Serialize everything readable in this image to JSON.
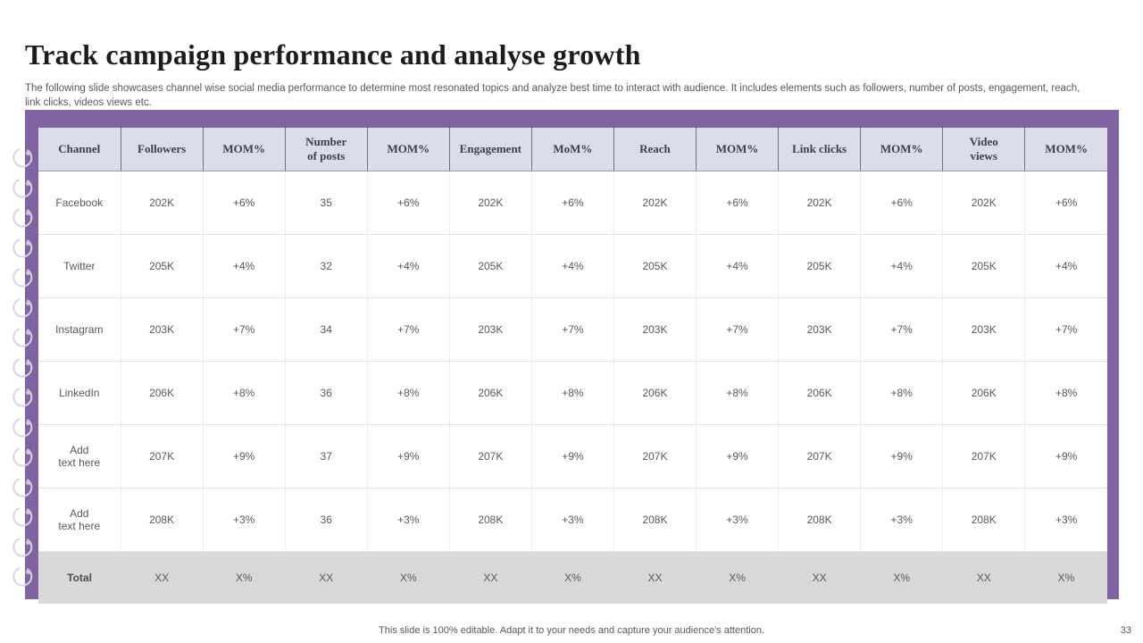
{
  "slide": {
    "title": "Track campaign performance and analyse growth",
    "description": "The following slide showcases channel wise social media performance to determine most resonated topics and analyze best time to interact with audience. It includes elements such as followers, number of posts, engagement, reach, link clicks, videos views etc.",
    "footer_note": "This slide is 100% editable.  Adapt it to your needs and capture your audience's attention.",
    "page_number": "33"
  },
  "colors": {
    "accent_purple": "#8064A2",
    "header_bg": "#DBDEE9",
    "total_row_bg": "#D9D9D9",
    "body_text": "#595959",
    "header_text": "#3E3E50",
    "ring_gray": "#D7D5DE"
  },
  "table": {
    "columns": [
      "Channel",
      "Followers",
      "MOM%",
      "Number\nof posts",
      "MOM%",
      "Engagement",
      "MoM%",
      "Reach",
      "MOM%",
      "Link clicks",
      "MOM%",
      "Video\nviews",
      "MOM%"
    ],
    "rows": [
      {
        "channel": "Facebook",
        "values": [
          "202K",
          "+6%",
          "35",
          "+6%",
          "202K",
          "+6%",
          "202K",
          "+6%",
          "202K",
          "+6%",
          "202K",
          "+6%"
        ]
      },
      {
        "channel": "Twitter",
        "values": [
          "205K",
          "+4%",
          "32",
          "+4%",
          "205K",
          "+4%",
          "205K",
          "+4%",
          "205K",
          "+4%",
          "205K",
          "+4%"
        ]
      },
      {
        "channel": "Instagram",
        "values": [
          "203K",
          "+7%",
          "34",
          "+7%",
          "203K",
          "+7%",
          "203K",
          "+7%",
          "203K",
          "+7%",
          "203K",
          "+7%"
        ]
      },
      {
        "channel": "LinkedIn",
        "values": [
          "206K",
          "+8%",
          "36",
          "+8%",
          "206K",
          "+8%",
          "206K",
          "+8%",
          "206K",
          "+8%",
          "206K",
          "+8%"
        ]
      },
      {
        "channel": "Add\ntext here",
        "values": [
          "207K",
          "+9%",
          "37",
          "+9%",
          "207K",
          "+9%",
          "207K",
          "+9%",
          "207K",
          "+9%",
          "207K",
          "+9%"
        ]
      },
      {
        "channel": "Add\ntext here",
        "values": [
          "208K",
          "+3%",
          "36",
          "+3%",
          "208K",
          "+3%",
          "208K",
          "+3%",
          "208K",
          "+3%",
          "208K",
          "+3%"
        ]
      }
    ],
    "total_row": {
      "channel": "Total",
      "values": [
        "XX",
        "X%",
        "XX",
        "X%",
        "XX",
        "X%",
        "XX",
        "X%",
        "XX",
        "X%",
        "XX",
        "X%"
      ]
    }
  }
}
